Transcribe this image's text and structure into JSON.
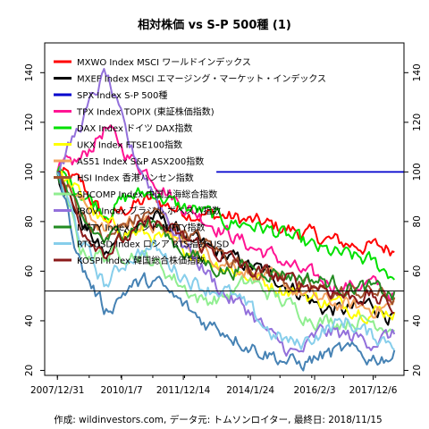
{
  "chart_data": {
    "type": "line",
    "title": "相対株価 vs S-P 500種 (1)",
    "footer": "作成: wildinvestors.com, データ元: トムソンロイター, 最終日: 2018/11/15",
    "x_tick_labels": [
      "2007/12/31",
      "2010/1/7",
      "2011/12/14",
      "2014/1/24",
      "2016/2/3",
      "2017/12/6"
    ],
    "x_tick_positions": [
      0.0,
      2.02,
      3.96,
      6.07,
      8.09,
      9.93
    ],
    "xlim": [
      -0.4,
      10.9
    ],
    "y_ticks": [
      20,
      40,
      60,
      80,
      100,
      120,
      140
    ],
    "ylim": [
      18,
      152
    ],
    "reference_lines": [
      {
        "y": 100,
        "color": "#0000cd",
        "start": 5.0,
        "end": 10.9
      },
      {
        "y": 52,
        "color": "#000000",
        "start": -0.4,
        "end": 10.9
      }
    ],
    "series": [
      {
        "name": "MXWO Index MSCI ワールドインデックス",
        "color": "#ff0000",
        "values": [
          100,
          95,
          80,
          86,
          89,
          85,
          83,
          82,
          80,
          78,
          76,
          73,
          71,
          70,
          69
        ]
      },
      {
        "name": "MXEF Index MSCI エマージング・マーケット・インデックス",
        "color": "#000000",
        "values": [
          100,
          80,
          66,
          78,
          82,
          76,
          70,
          66,
          62,
          58,
          52,
          45,
          44,
          47,
          41
        ]
      },
      {
        "name": "SPX Index S-P 500種",
        "color": "#0000cd",
        "values": [
          100,
          100,
          100,
          100,
          100,
          100,
          100,
          100,
          100,
          100,
          100,
          100,
          100,
          100,
          100
        ]
      },
      {
        "name": "TPX Index TOPIX (東証株価指数)",
        "color": "#ff1493",
        "values": [
          100,
          105,
          118,
          106,
          98,
          88,
          82,
          76,
          70,
          66,
          60,
          56,
          54,
          55,
          50
        ]
      },
      {
        "name": "DAX Index ドイツ DAX指数",
        "color": "#00e000",
        "values": [
          100,
          92,
          84,
          90,
          92,
          86,
          84,
          80,
          79,
          76,
          72,
          68,
          66,
          64,
          58
        ]
      },
      {
        "name": "UKX Index FTSE100指数",
        "color": "#ffff00",
        "values": [
          100,
          90,
          78,
          76,
          74,
          70,
          66,
          62,
          58,
          54,
          52,
          48,
          46,
          44,
          44
        ]
      },
      {
        "name": "AS51 Index S&P ASX200指数",
        "color": "#f4a460",
        "values": [
          100,
          88,
          76,
          80,
          78,
          72,
          68,
          64,
          60,
          56,
          52,
          48,
          46,
          45,
          46
        ]
      },
      {
        "name": "HSI Index 香港ハンセン指数",
        "color": "#a0522d",
        "values": [
          100,
          84,
          72,
          80,
          84,
          78,
          72,
          66,
          62,
          58,
          54,
          52,
          51,
          52,
          49
        ]
      },
      {
        "name": "SHCOMP Index 中国上海総合指数",
        "color": "#90ee90",
        "values": [
          100,
          68,
          66,
          68,
          64,
          56,
          48,
          50,
          56,
          50,
          44,
          40,
          40,
          40,
          38
        ]
      },
      {
        "name": "IBOV Index ブラジル ボベスパ指数",
        "color": "#9370db",
        "values": [
          100,
          120,
          140,
          110,
          92,
          74,
          62,
          50,
          44,
          32,
          26,
          36,
          34,
          32,
          34
        ]
      },
      {
        "name": "NIFTY Index インド NIFTY指数",
        "color": "#228b22",
        "values": [
          100,
          80,
          72,
          78,
          80,
          70,
          64,
          60,
          62,
          60,
          58,
          56,
          54,
          53,
          50
        ]
      },
      {
        "name": "RTSUSD Index ロシア RTS指数 USD",
        "color": "#87ceeb",
        "values": [
          100,
          72,
          54,
          66,
          70,
          60,
          54,
          52,
          44,
          34,
          30,
          36,
          40,
          34,
          32
        ]
      },
      {
        "name": "KOSPI Index 韓国総合株価指数",
        "color": "#8b1a1a",
        "values": [
          100,
          78,
          68,
          74,
          80,
          74,
          70,
          66,
          60,
          58,
          55,
          54,
          50,
          50,
          45
        ]
      },
      {
        "name": "",
        "color": "#4682b4",
        "values": [
          100,
          62,
          44,
          54,
          56,
          48,
          40,
          36,
          30,
          26,
          22,
          26,
          28,
          25,
          26
        ]
      }
    ]
  }
}
